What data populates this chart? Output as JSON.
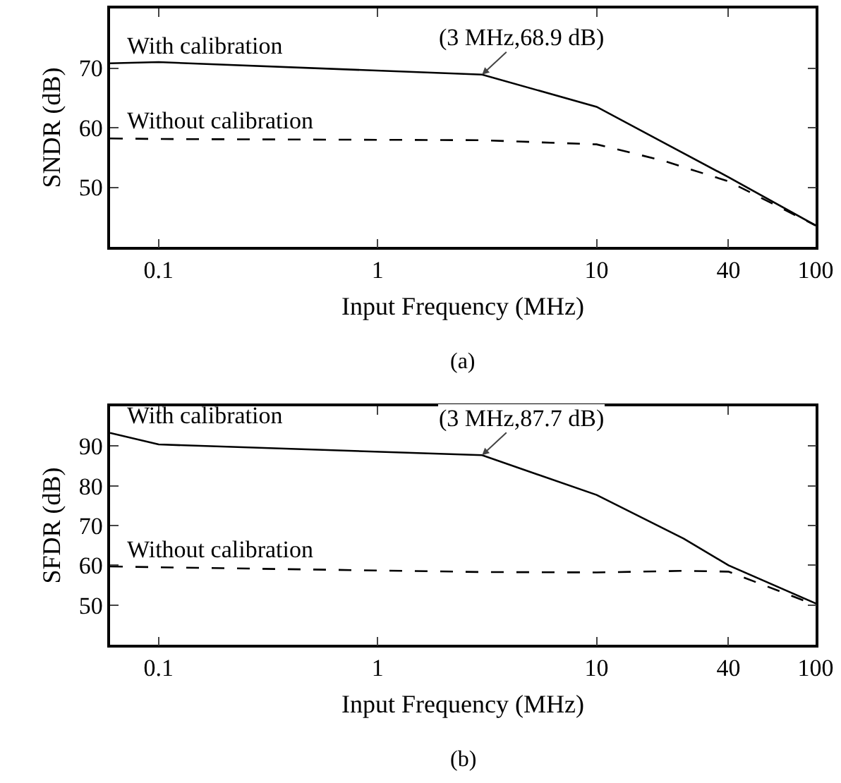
{
  "chart_data": [
    {
      "type": "line",
      "xlabel": "Input Frequency (MHz)",
      "ylabel": "SNDR (dB)",
      "log": "x",
      "grid": false,
      "legend": false,
      "marker": "none",
      "xlim": [
        0.06,
        100
      ],
      "ylim": [
        40,
        80
      ],
      "xticks": [
        0.1,
        1,
        10,
        40,
        100
      ],
      "yticks": [
        50,
        60,
        70
      ],
      "x": [
        0.06,
        0.1,
        3,
        10,
        20,
        40,
        100
      ],
      "series": [
        {
          "name": "With calibration",
          "color": "#000000",
          "line_style": "solid",
          "values": [
            70.8,
            71,
            68.9,
            63.5,
            57.6,
            51.7,
            43.6
          ]
        },
        {
          "name": "Without calibration",
          "color": "#000000",
          "line_style": "dashed",
          "values": [
            58.2,
            58.1,
            57.9,
            57.2,
            54.5,
            51,
            43.6
          ]
        }
      ],
      "annotations": [
        {
          "text": "(3 MHz,68.9 dB)",
          "x": 3,
          "y": 68.9
        },
        "(a)"
      ]
    },
    {
      "type": "line",
      "xlabel": "Input Frequency (MHz)",
      "ylabel": "SFDR (dB)",
      "log": "x",
      "grid": false,
      "legend": false,
      "marker": "none",
      "xlim": [
        0.06,
        100
      ],
      "ylim": [
        40,
        100
      ],
      "xticks": [
        0.1,
        1,
        10,
        40,
        100
      ],
      "yticks": [
        50,
        60,
        70,
        80,
        90
      ],
      "x": [
        0.06,
        0.1,
        3,
        10,
        25,
        40,
        100
      ],
      "series": [
        {
          "name": "With calibration",
          "color": "#000000",
          "line_style": "solid",
          "values": [
            93.3,
            90.4,
            87.7,
            77.7,
            66.7,
            60,
            50.4
          ]
        },
        {
          "name": "Without calibration",
          "color": "#000000",
          "line_style": "dashed",
          "values": [
            59.7,
            59.5,
            58.3,
            58.2,
            58.6,
            58.4,
            50
          ]
        }
      ],
      "annotations": [
        {
          "text": "(3 MHz,87.7 dB)",
          "x": 3,
          "y": 87.7
        },
        "(b)"
      ]
    }
  ]
}
